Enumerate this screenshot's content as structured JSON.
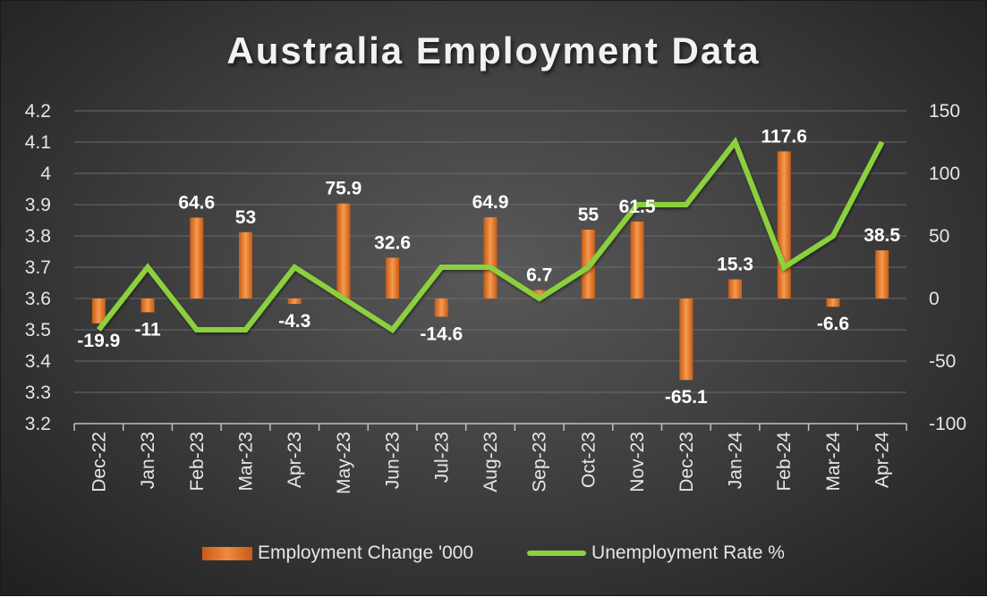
{
  "colors": {
    "bar": "#ed7d31",
    "bar_light": "#f79a4e",
    "bar_dark": "#c65b17",
    "line": "#8bd13e",
    "grid": "#6a6a6a",
    "axis": "#bfbfbf"
  },
  "chart_data": {
    "type": "bar",
    "title": "Australia Employment Data",
    "categories": [
      "Dec-22",
      "Jan-23",
      "Feb-23",
      "Mar-23",
      "Apr-23",
      "May-23",
      "Jun-23",
      "Jul-23",
      "Aug-23",
      "Sep-23",
      "Oct-23",
      "Nov-23",
      "Dec-23",
      "Jan-24",
      "Feb-24",
      "Mar-24",
      "Apr-24"
    ],
    "series": [
      {
        "name": "Employment Change '000",
        "type": "bar",
        "axis": "right",
        "values": [
          -19.9,
          -11,
          64.6,
          53,
          -4.3,
          75.9,
          32.6,
          -14.6,
          64.9,
          6.7,
          55,
          61.5,
          -65.1,
          15.3,
          117.6,
          -6.6,
          38.5
        ],
        "labels": [
          "-19.9",
          "-11",
          "64.6",
          "53",
          "-4.3",
          "75.9",
          "32.6",
          "-14.6",
          "64.9",
          "6.7",
          "55",
          "61.5",
          "-65.1",
          "15.3",
          "117.6",
          "-6.6",
          "38.5"
        ]
      },
      {
        "name": "Unemployment Rate %",
        "type": "line",
        "axis": "left",
        "values": [
          3.5,
          3.7,
          3.5,
          3.5,
          3.7,
          3.6,
          3.5,
          3.7,
          3.7,
          3.6,
          3.7,
          3.9,
          3.9,
          4.1,
          3.7,
          3.8,
          4.1
        ]
      }
    ],
    "y_left": {
      "range": [
        3.2,
        4.2
      ],
      "ticks": [
        "3.2",
        "3.3",
        "3.4",
        "3.5",
        "3.6",
        "3.7",
        "3.8",
        "3.9",
        "4",
        "4.1",
        "4.2"
      ]
    },
    "y_right": {
      "range": [
        -100,
        150
      ],
      "ticks": [
        "-100",
        "-50",
        "0",
        "50",
        "100",
        "150"
      ]
    },
    "grid": true,
    "legend_position": "bottom"
  }
}
